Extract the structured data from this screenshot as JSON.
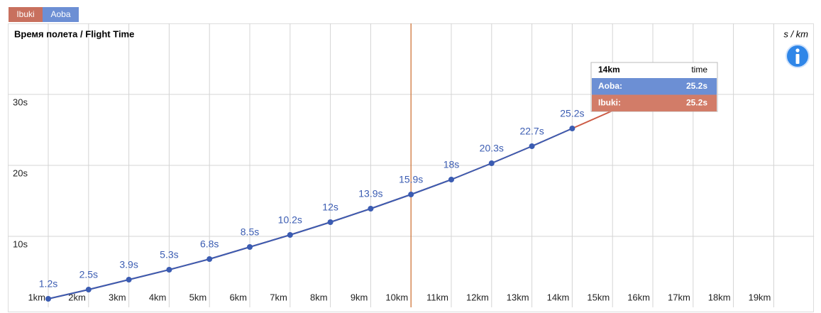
{
  "tabs": [
    {
      "label": "Ibuki",
      "color": "#c8705e"
    },
    {
      "label": "Aoba",
      "color": "#6c8fd4"
    }
  ],
  "chart_data": {
    "type": "line",
    "title": "Время полета / Flight Time",
    "unit": "s / km",
    "xlim": [
      0,
      20
    ],
    "ylim": [
      0,
      40
    ],
    "xticks": [
      {
        "value": 1,
        "label": "1km"
      },
      {
        "value": 2,
        "label": "2km"
      },
      {
        "value": 3,
        "label": "3km"
      },
      {
        "value": 4,
        "label": "4km"
      },
      {
        "value": 5,
        "label": "5km"
      },
      {
        "value": 6,
        "label": "6km"
      },
      {
        "value": 7,
        "label": "7km"
      },
      {
        "value": 8,
        "label": "8km"
      },
      {
        "value": 9,
        "label": "9km"
      },
      {
        "value": 10,
        "label": "10km"
      },
      {
        "value": 11,
        "label": "11km"
      },
      {
        "value": 12,
        "label": "12km"
      },
      {
        "value": 13,
        "label": "13km"
      },
      {
        "value": 14,
        "label": "14km"
      },
      {
        "value": 15,
        "label": "15km"
      },
      {
        "value": 16,
        "label": "16km"
      },
      {
        "value": 17,
        "label": "17km"
      },
      {
        "value": 18,
        "label": "18km"
      },
      {
        "value": 19,
        "label": "19km"
      }
    ],
    "yticks": [
      {
        "value": 10,
        "label": "10s"
      },
      {
        "value": 20,
        "label": "20s"
      },
      {
        "value": 30,
        "label": "30s"
      }
    ],
    "grid": true,
    "cursor_x": 10,
    "cursor_color": "#d2783c",
    "series": [
      {
        "name": "Ibuki",
        "color": "#cc5a44",
        "markers": false,
        "x": [
          1,
          2,
          3,
          4,
          5,
          6,
          7,
          8,
          9,
          10,
          11,
          12,
          13,
          14,
          15
        ],
        "values": [
          1.2,
          2.5,
          3.9,
          5.3,
          6.8,
          8.5,
          10.2,
          12,
          13.9,
          15.9,
          18,
          20.3,
          22.7,
          25.2,
          27.7
        ]
      },
      {
        "name": "Aoba",
        "color": "#3b5cb2",
        "markers": true,
        "x": [
          1,
          2,
          3,
          4,
          5,
          6,
          7,
          8,
          9,
          10,
          11,
          12,
          13,
          14
        ],
        "values": [
          1.2,
          2.5,
          3.9,
          5.3,
          6.8,
          8.5,
          10.2,
          12,
          13.9,
          15.9,
          18,
          20.3,
          22.7,
          25.2
        ],
        "value_labels": [
          "1.2s",
          "2.5s",
          "3.9s",
          "5.3s",
          "6.8s",
          "8.5s",
          "10.2s",
          "12s",
          "13.9s",
          "15.9s",
          "18s",
          "20.3s",
          "22.7s",
          "25.2s"
        ]
      }
    ],
    "tooltip": {
      "title": "14km",
      "column": "time",
      "rows": [
        {
          "name": "Aoba:",
          "value": "25.2s",
          "color": "#6c8fd4"
        },
        {
          "name": "Ibuki:",
          "value": "25.2s",
          "color": "#d27c68"
        }
      ]
    }
  }
}
